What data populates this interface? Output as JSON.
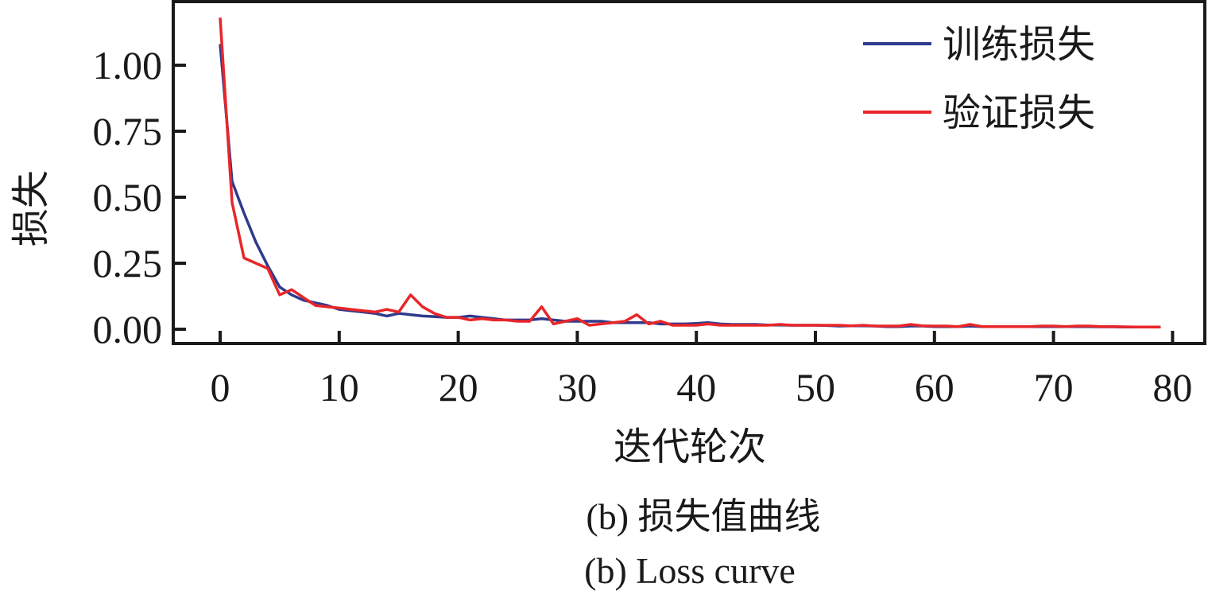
{
  "chart_data": {
    "type": "line",
    "title": "",
    "xlabel": "迭代轮次",
    "ylabel": "损失",
    "xlim": [
      -4,
      83
    ],
    "ylim": [
      -0.06,
      1.24
    ],
    "xticks": [
      0,
      10,
      20,
      30,
      40,
      50,
      60,
      70,
      80
    ],
    "xtick_labels": [
      "0",
      "10",
      "20",
      "30",
      "40",
      "50",
      "60",
      "70",
      "80"
    ],
    "yticks": [
      0,
      0.25,
      0.5,
      0.75,
      1.0
    ],
    "ytick_labels": [
      "0.00",
      "0.25",
      "0.50",
      "0.75",
      "1.00"
    ],
    "grid": false,
    "legend_position": "top-right",
    "series": [
      {
        "name": "训练损失",
        "color": "#2e3a8c",
        "values": [
          1.08,
          0.56,
          0.44,
          0.33,
          0.24,
          0.16,
          0.13,
          0.11,
          0.1,
          0.09,
          0.075,
          0.07,
          0.065,
          0.06,
          0.05,
          0.06,
          0.055,
          0.05,
          0.048,
          0.045,
          0.045,
          0.05,
          0.045,
          0.04,
          0.035,
          0.035,
          0.035,
          0.04,
          0.035,
          0.03,
          0.03,
          0.03,
          0.03,
          0.025,
          0.025,
          0.025,
          0.025,
          0.02,
          0.02,
          0.02,
          0.022,
          0.025,
          0.02,
          0.018,
          0.018,
          0.018,
          0.016,
          0.016,
          0.015,
          0.015,
          0.015,
          0.014,
          0.012,
          0.013,
          0.013,
          0.012,
          0.01,
          0.01,
          0.012,
          0.012,
          0.01,
          0.01,
          0.01,
          0.012,
          0.01,
          0.01,
          0.01,
          0.01,
          0.01,
          0.01,
          0.01,
          0.01,
          0.01,
          0.01,
          0.009,
          0.009,
          0.008,
          0.008,
          0.008,
          0.008
        ]
      },
      {
        "name": "验证损失",
        "color": "#e8262a",
        "values": [
          1.18,
          0.48,
          0.27,
          0.25,
          0.23,
          0.13,
          0.15,
          0.12,
          0.09,
          0.085,
          0.08,
          0.075,
          0.07,
          0.065,
          0.075,
          0.065,
          0.13,
          0.085,
          0.06,
          0.045,
          0.045,
          0.035,
          0.04,
          0.035,
          0.035,
          0.03,
          0.03,
          0.085,
          0.02,
          0.03,
          0.04,
          0.015,
          0.02,
          0.025,
          0.03,
          0.055,
          0.02,
          0.03,
          0.015,
          0.015,
          0.015,
          0.02,
          0.015,
          0.015,
          0.015,
          0.015,
          0.015,
          0.018,
          0.015,
          0.015,
          0.015,
          0.015,
          0.015,
          0.013,
          0.015,
          0.012,
          0.012,
          0.012,
          0.018,
          0.013,
          0.012,
          0.012,
          0.01,
          0.018,
          0.01,
          0.01,
          0.01,
          0.01,
          0.01,
          0.012,
          0.012,
          0.01,
          0.012,
          0.012,
          0.01,
          0.01,
          0.009,
          0.008,
          0.008,
          0.008
        ]
      }
    ]
  },
  "captions": {
    "zh": "(b)  损失值曲线",
    "en": "(b)  Loss curve"
  }
}
